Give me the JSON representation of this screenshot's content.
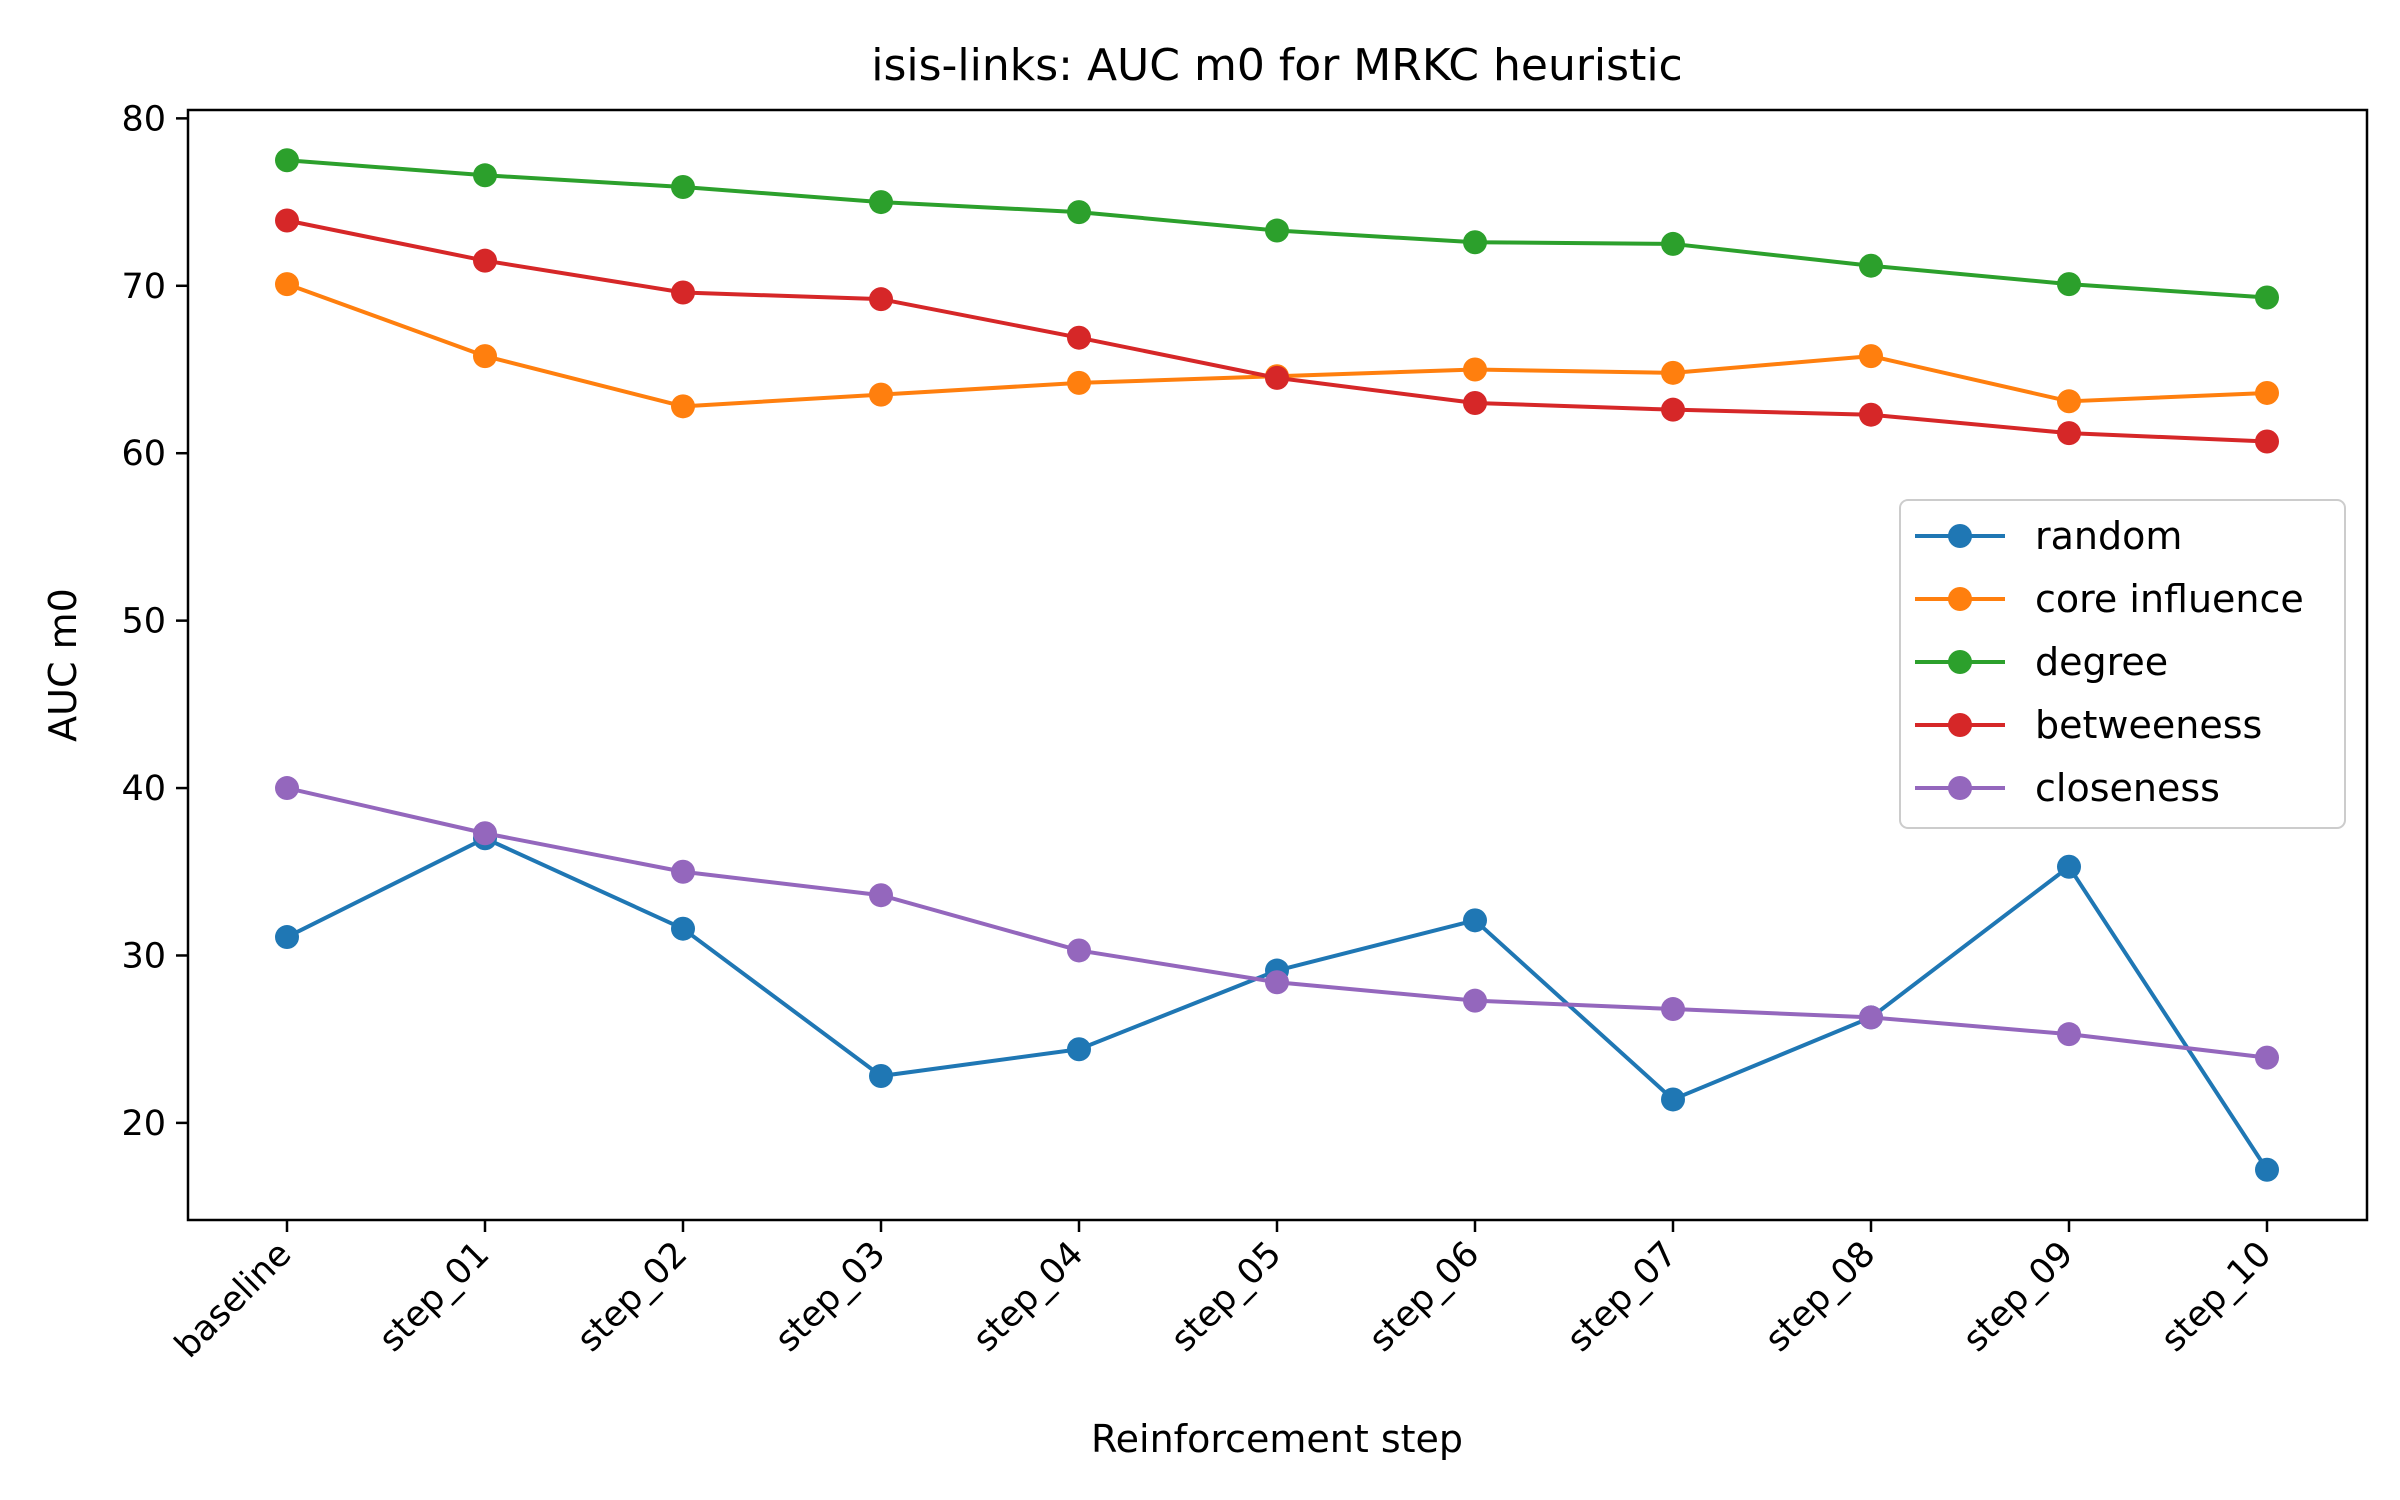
{
  "chart_data": {
    "type": "line",
    "title": "isis-links: AUC m0 for MRKC heuristic",
    "xlabel": "Reinforcement step",
    "ylabel": "AUC m0",
    "categories": [
      "baseline",
      "step_01",
      "step_02",
      "step_03",
      "step_04",
      "step_05",
      "step_06",
      "step_07",
      "step_08",
      "step_09",
      "step_10"
    ],
    "ylim": [
      14.2,
      80.5
    ],
    "yticks": [
      20,
      30,
      40,
      50,
      60,
      70,
      80
    ],
    "grid": false,
    "legend_position": "center-right",
    "series": [
      {
        "name": "random",
        "color": "#1f77b4",
        "values": [
          31.1,
          37.0,
          31.6,
          22.8,
          24.4,
          29.1,
          32.1,
          21.4,
          26.3,
          35.3,
          17.2
        ]
      },
      {
        "name": "core influence",
        "color": "#ff7f0e",
        "values": [
          70.1,
          65.8,
          62.8,
          63.5,
          64.2,
          64.6,
          65.0,
          64.8,
          65.8,
          63.1,
          63.6
        ]
      },
      {
        "name": "degree",
        "color": "#2ca02c",
        "values": [
          77.5,
          76.6,
          75.9,
          75.0,
          74.4,
          73.3,
          72.6,
          72.5,
          71.2,
          70.1,
          69.3
        ]
      },
      {
        "name": "betweeness",
        "color": "#d62728",
        "values": [
          73.9,
          71.5,
          69.6,
          69.2,
          66.9,
          64.5,
          63.0,
          62.6,
          62.3,
          61.2,
          60.7
        ]
      },
      {
        "name": "closeness",
        "color": "#9467bd",
        "values": [
          40.0,
          37.3,
          35.0,
          33.6,
          30.3,
          28.4,
          27.3,
          26.8,
          26.3,
          25.3,
          23.9
        ]
      }
    ]
  }
}
